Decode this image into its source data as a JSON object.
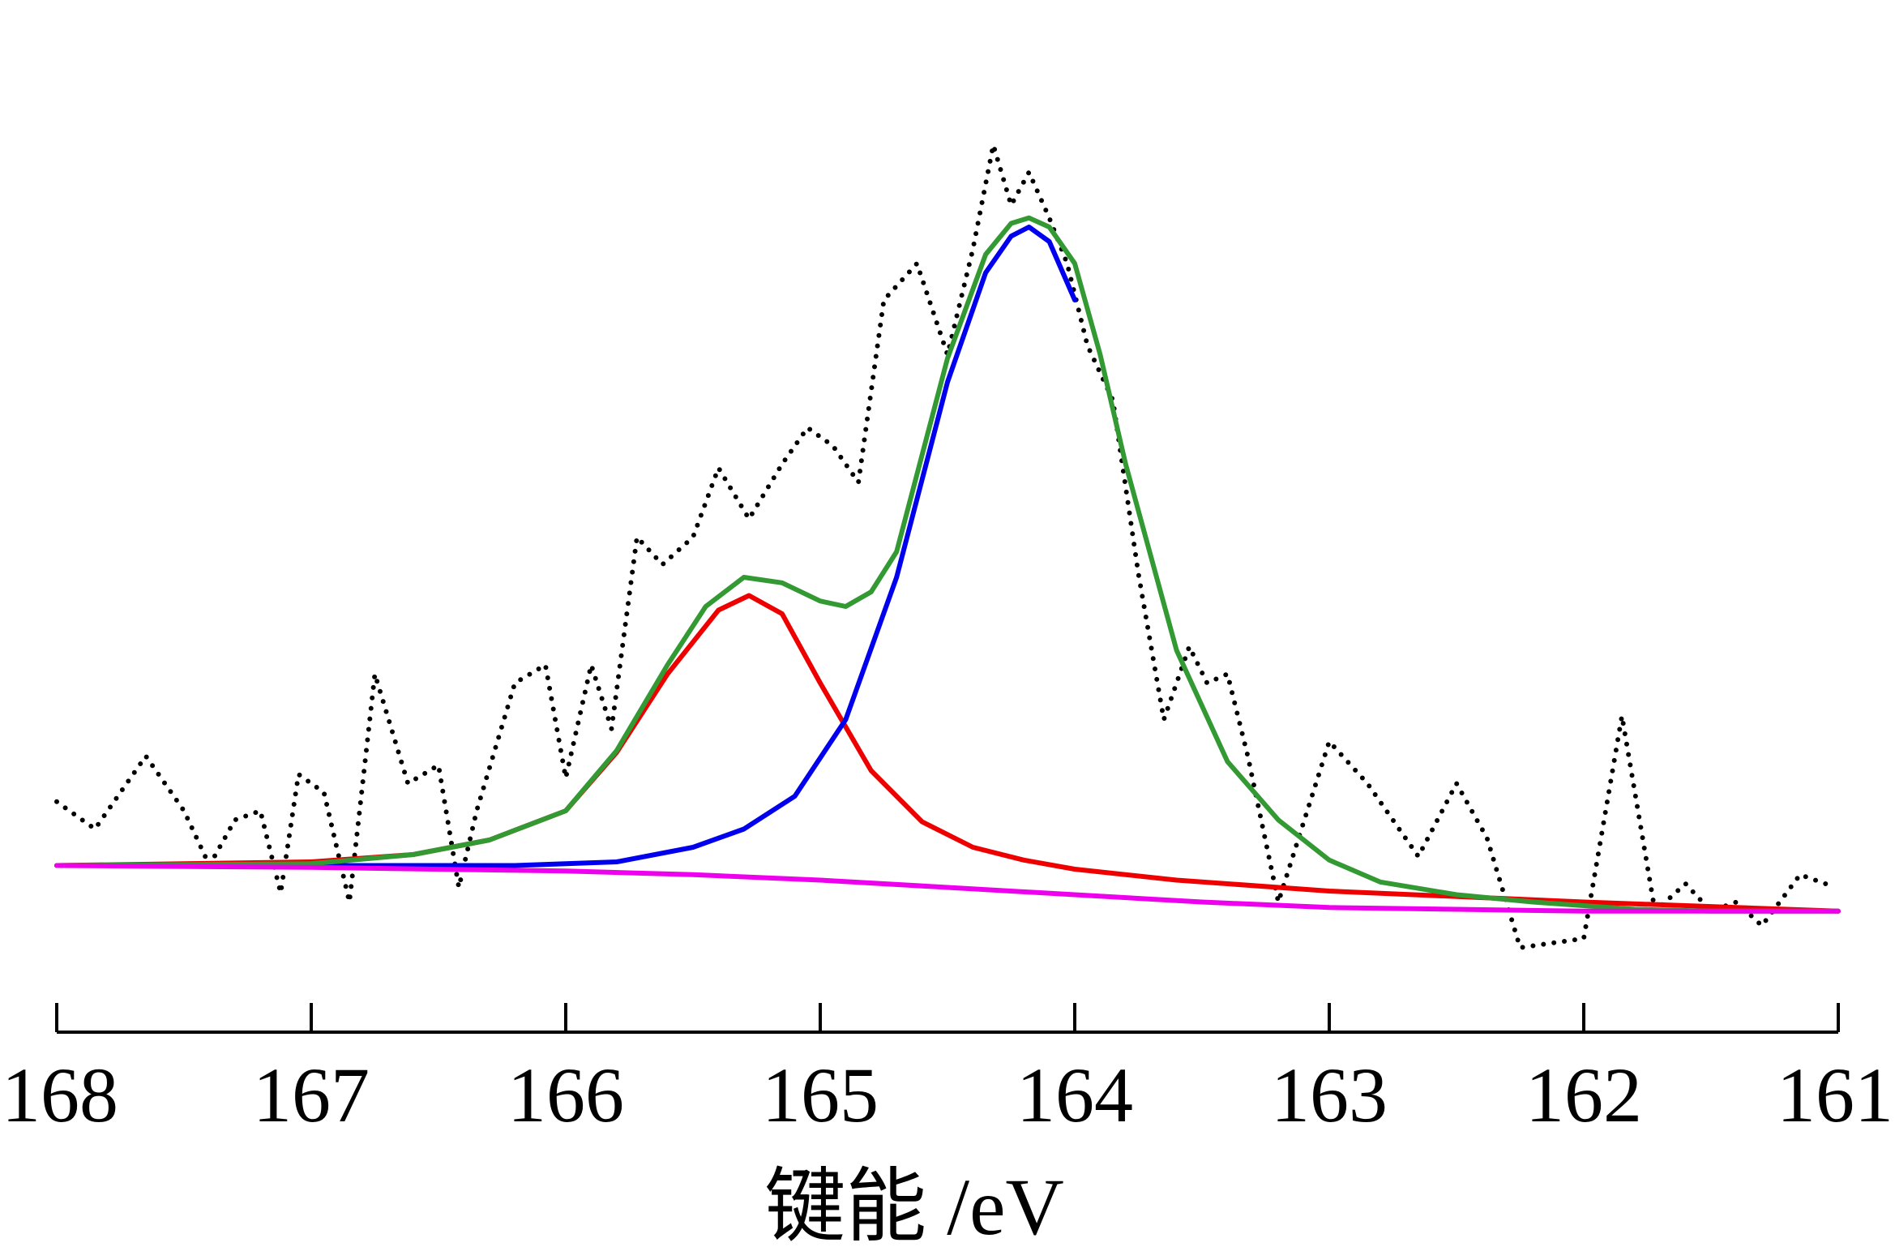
{
  "chart_data": {
    "type": "line",
    "xlabel": "键能 /eV",
    "ylabel": "",
    "title": "",
    "xlim": [
      168,
      161
    ],
    "x_reversed": true,
    "ylim": [
      -0.7,
      4.7
    ],
    "grid": false,
    "legend": "none",
    "xticks": [
      "168",
      "167",
      "166",
      "165",
      "164",
      "163",
      "162",
      "161"
    ],
    "y_axis_visible": false,
    "series": [
      {
        "style": "dotted",
        "color": "#000000",
        "x": [
          168.0,
          167.85,
          167.65,
          167.5,
          167.4,
          167.3,
          167.2,
          167.12,
          167.05,
          166.95,
          166.85,
          166.75,
          166.62,
          166.5,
          166.42,
          166.35,
          166.2,
          166.08,
          166.0,
          165.9,
          165.82,
          165.72,
          165.62,
          165.5,
          165.4,
          165.28,
          165.15,
          165.05,
          164.95,
          164.85,
          164.75,
          164.62,
          164.5,
          164.4,
          164.32,
          164.25,
          164.18,
          164.1,
          164.03,
          163.95,
          163.85,
          163.75,
          163.65,
          163.55,
          163.48,
          163.4,
          163.32,
          163.2,
          163.0,
          162.85,
          162.65,
          162.5,
          162.38,
          162.25,
          162.0,
          161.85,
          161.72,
          161.6,
          161.5,
          161.4,
          161.3,
          161.15,
          161.05
        ],
        "y": [
          0.35,
          0.2,
          0.6,
          0.3,
          0.0,
          0.25,
          0.3,
          -0.15,
          0.5,
          0.4,
          -0.2,
          1.05,
          0.45,
          0.55,
          -0.12,
          0.3,
          1.0,
          1.1,
          0.48,
          1.1,
          0.75,
          1.8,
          1.65,
          1.8,
          2.18,
          1.9,
          2.2,
          2.4,
          2.3,
          2.1,
          3.1,
          3.3,
          2.8,
          3.38,
          3.95,
          3.62,
          3.8,
          3.55,
          3.3,
          2.85,
          2.55,
          1.6,
          0.8,
          1.2,
          1.0,
          1.05,
          0.6,
          -0.2,
          0.68,
          0.45,
          0.05,
          0.45,
          0.15,
          -0.45,
          -0.4,
          0.82,
          -0.25,
          -0.1,
          -0.25,
          -0.2,
          -0.33,
          -0.05,
          -0.1
        ]
      },
      {
        "style": "solid",
        "color": "#ee0000",
        "x": [
          168.0,
          167.5,
          167.0,
          166.6,
          166.3,
          166.0,
          165.8,
          165.6,
          165.4,
          165.28,
          165.15,
          165.0,
          164.8,
          164.6,
          164.4,
          164.2,
          164.0,
          163.6,
          163.0,
          162.0,
          161.0
        ],
        "y": [
          0.0,
          0.01,
          0.02,
          0.06,
          0.14,
          0.3,
          0.62,
          1.05,
          1.4,
          1.48,
          1.38,
          1.0,
          0.52,
          0.24,
          0.1,
          0.03,
          -0.02,
          -0.08,
          -0.14,
          -0.2,
          -0.25
        ]
      },
      {
        "style": "solid",
        "color": "#0000ee",
        "x": [
          168.0,
          167.0,
          166.2,
          165.8,
          165.5,
          165.3,
          165.1,
          164.9,
          164.7,
          164.5,
          164.35,
          164.25,
          164.18,
          164.1,
          164.0
        ],
        "y": [
          0.0,
          0.0,
          0.0,
          0.02,
          0.1,
          0.2,
          0.38,
          0.8,
          1.58,
          2.65,
          3.25,
          3.45,
          3.5,
          3.42,
          3.1
        ]
      },
      {
        "style": "solid",
        "color": "#339933",
        "x": [
          168.0,
          167.0,
          166.6,
          166.3,
          166.0,
          165.8,
          165.6,
          165.45,
          165.3,
          165.15,
          165.0,
          164.9,
          164.8,
          164.7,
          164.5,
          164.35,
          164.25,
          164.18,
          164.1,
          164.0,
          163.9,
          163.8,
          163.6,
          163.4,
          163.2,
          163.0,
          162.8,
          162.5,
          162.2,
          161.8,
          161.5,
          161.0
        ],
        "y": [
          0.0,
          0.01,
          0.06,
          0.14,
          0.3,
          0.63,
          1.1,
          1.42,
          1.58,
          1.55,
          1.45,
          1.42,
          1.5,
          1.72,
          2.78,
          3.35,
          3.52,
          3.55,
          3.5,
          3.3,
          2.8,
          2.2,
          1.18,
          0.57,
          0.25,
          0.03,
          -0.09,
          -0.16,
          -0.2,
          -0.24,
          -0.25,
          -0.25
        ]
      },
      {
        "style": "solid",
        "color": "#ee00ee",
        "x": [
          168.0,
          167.0,
          166.0,
          165.5,
          165.0,
          164.5,
          164.0,
          163.5,
          163.0,
          162.5,
          162.0,
          161.0
        ],
        "y": [
          0.0,
          -0.01,
          -0.03,
          -0.05,
          -0.08,
          -0.12,
          -0.16,
          -0.2,
          -0.23,
          -0.24,
          -0.25,
          -0.25
        ]
      }
    ]
  }
}
